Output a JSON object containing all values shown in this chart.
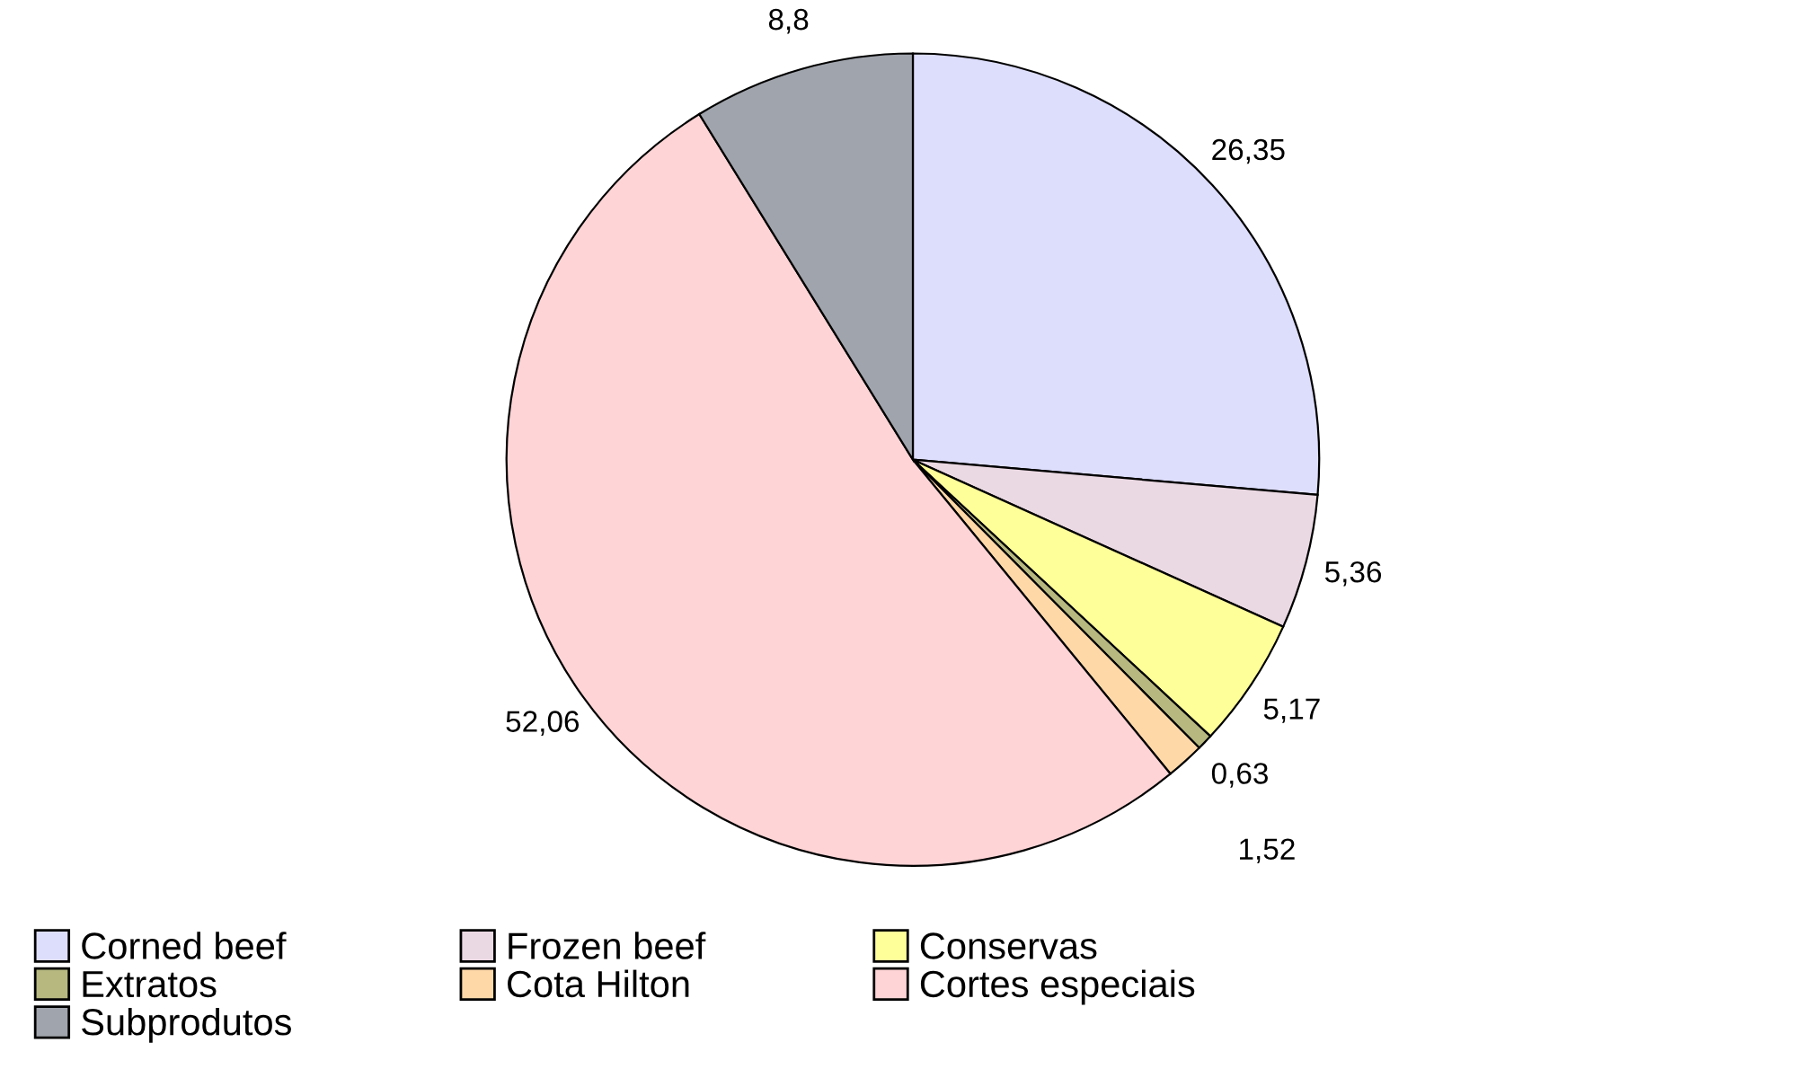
{
  "chart_data": {
    "type": "pie",
    "categories": [
      "Corned beef",
      "Frozen beef",
      "Conservas",
      "Extratos",
      "Cota Hilton",
      "Cortes especiais",
      "Subprodutos"
    ],
    "values": [
      26.35,
      5.36,
      5.17,
      0.63,
      1.52,
      52.06,
      8.8
    ],
    "value_labels": [
      "26,35",
      "5,36",
      "5,17",
      "0,63",
      "1,52",
      "52,06",
      "8,8"
    ],
    "colors": [
      "#ddddfc",
      "#ead8e2",
      "#ffff99",
      "#b6b880",
      "#ffd8a8",
      "#ffd4d6",
      "#a0a4ac"
    ],
    "legend": "bottom"
  }
}
